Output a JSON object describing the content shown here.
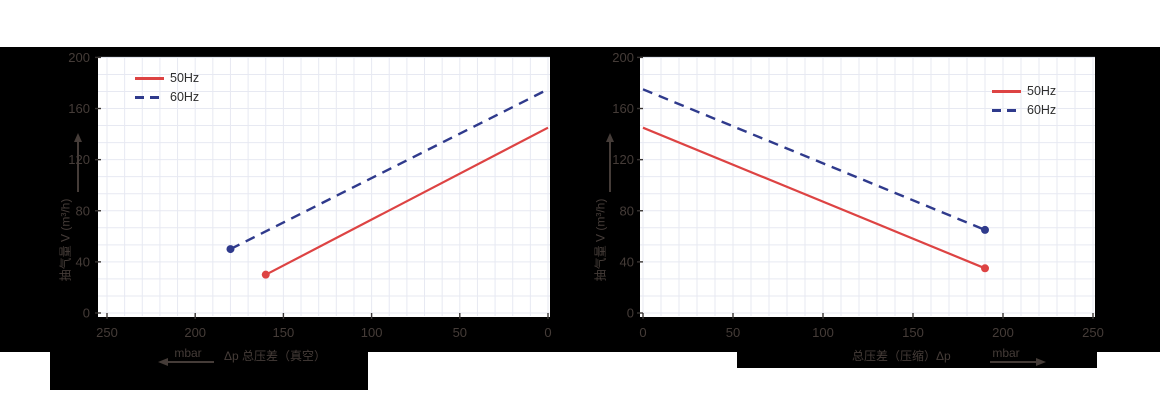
{
  "page": {
    "background": "#ffffff",
    "canvas_color": "#000000"
  },
  "colors": {
    "hz50": "#dd4343",
    "hz60": "#2f3a8c",
    "grid": "#e7e9f2",
    "on_black_text": "#453c38",
    "tick_mark": "#3a3634",
    "legend_text": "#2e2e2e",
    "panel_top_border": "#b9bfcc"
  },
  "chart_data": [
    {
      "type": "line",
      "title": "",
      "position": "left",
      "legend_position": "top-left",
      "legend": [
        {
          "label": "50Hz",
          "line_style": "solid",
          "color_key": "hz50"
        },
        {
          "label": "60Hz",
          "line_style": "dashed",
          "color_key": "hz60"
        }
      ],
      "x_axis": {
        "title": "Δp  总压差（真空）",
        "unit": "mbar",
        "direction_arrow": "left",
        "reversed": true,
        "range": [
          0,
          250
        ],
        "ticks": [
          250,
          200,
          150,
          100,
          50,
          0
        ]
      },
      "y_axis": {
        "label": "抽气量 V (m³/h)",
        "range": [
          0,
          200
        ],
        "ticks": [
          0,
          40,
          80,
          120,
          160,
          200
        ]
      },
      "series": [
        {
          "name": "50Hz",
          "style": "solid",
          "color_key": "hz50",
          "marker": "start",
          "points": [
            [
              160,
              30
            ],
            [
              0,
              145
            ]
          ]
        },
        {
          "name": "60Hz",
          "style": "dashed",
          "color_key": "hz60",
          "marker": "start",
          "points": [
            [
              180,
              50
            ],
            [
              0,
              175
            ]
          ]
        }
      ],
      "grid": true
    },
    {
      "type": "line",
      "title": "",
      "position": "right",
      "legend_position": "top-right",
      "legend": [
        {
          "label": "50Hz",
          "line_style": "solid",
          "color_key": "hz50"
        },
        {
          "label": "60Hz",
          "line_style": "dashed",
          "color_key": "hz60"
        }
      ],
      "x_axis": {
        "title": "总压差（压缩）Δp",
        "unit": "mbar",
        "direction_arrow": "right",
        "reversed": false,
        "range": [
          0,
          250
        ],
        "ticks": [
          0,
          50,
          100,
          150,
          200,
          250
        ]
      },
      "y_axis": {
        "label": "抽气量 V (m³/h)",
        "range": [
          0,
          200
        ],
        "ticks": [
          0,
          40,
          80,
          120,
          160,
          200
        ]
      },
      "series": [
        {
          "name": "50Hz",
          "style": "solid",
          "color_key": "hz50",
          "marker": "end",
          "points": [
            [
              0,
              145
            ],
            [
              190,
              35
            ]
          ]
        },
        {
          "name": "60Hz",
          "style": "dashed",
          "color_key": "hz60",
          "marker": "end",
          "points": [
            [
              0,
              175
            ],
            [
              190,
              65
            ]
          ]
        }
      ],
      "grid": true
    }
  ]
}
